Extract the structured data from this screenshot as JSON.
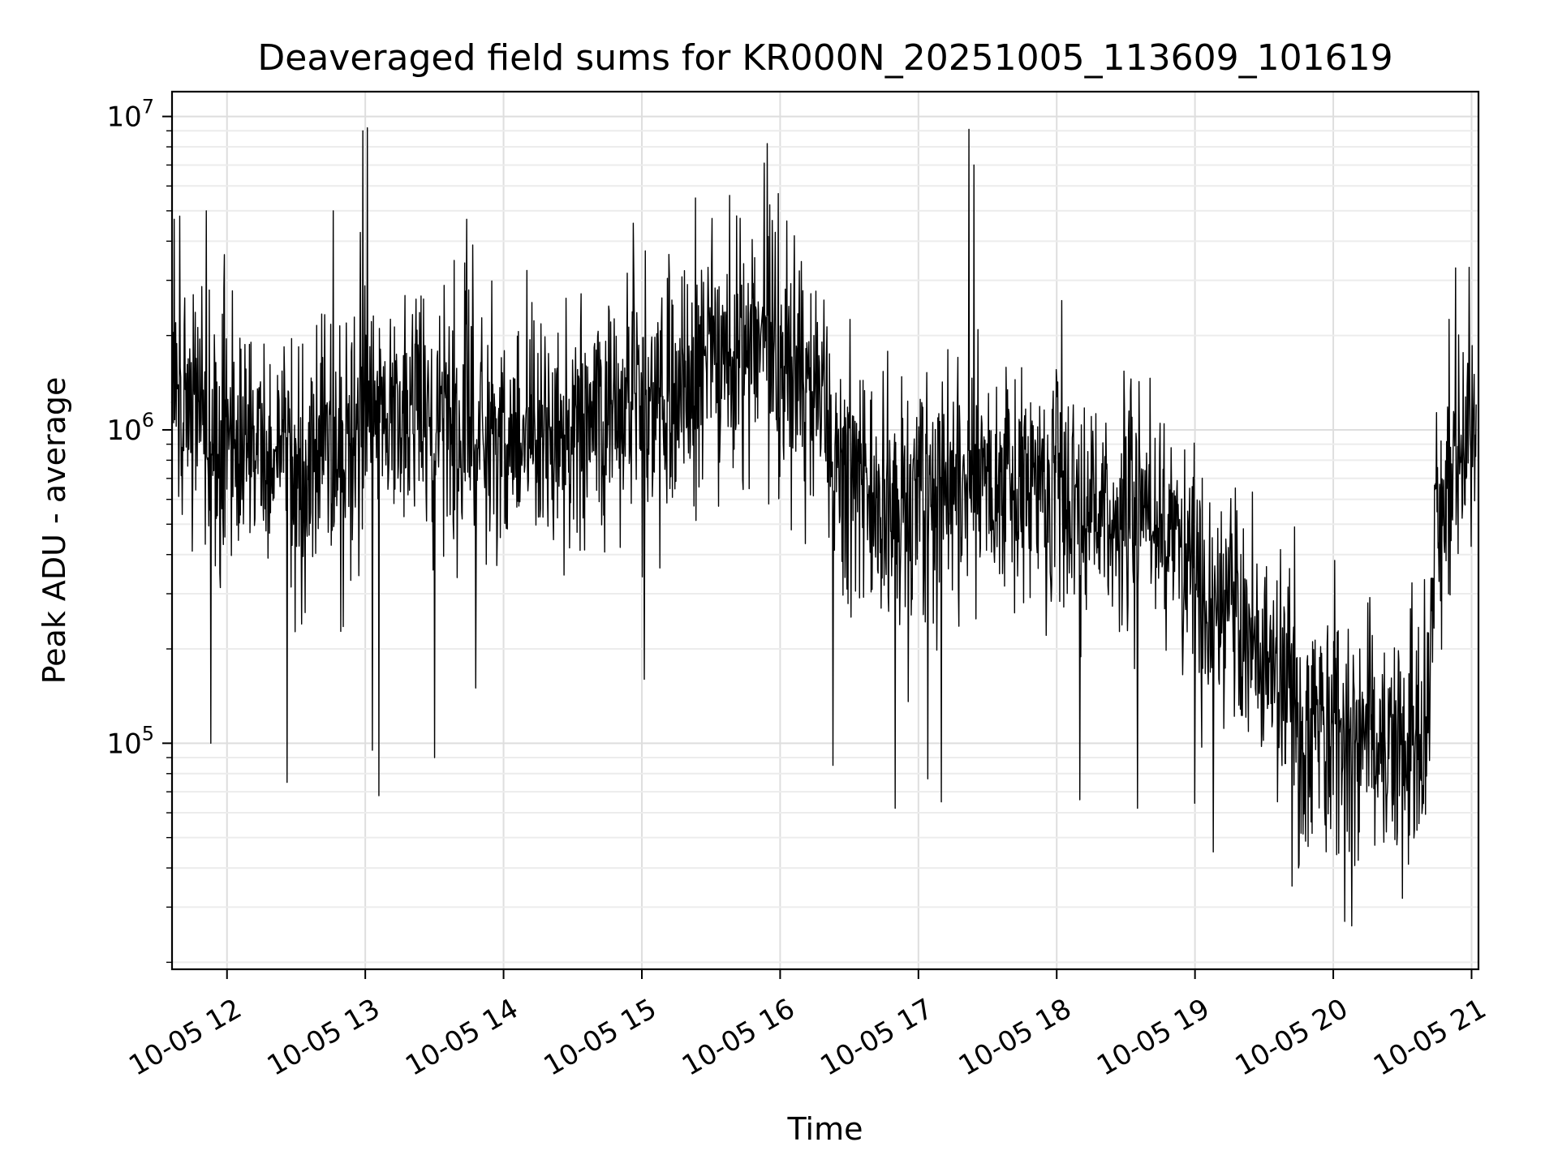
{
  "chart_data": {
    "type": "line",
    "title": "Deaveraged field sums for KR000N_20251005_113609_101619",
    "xlabel": "Time",
    "ylabel": "Peak ADU - average",
    "y_scale": "log",
    "ylim": [
      19000,
      12000000
    ],
    "xlim": [
      "2025-10-05 11:36:09",
      "2025-10-05 21:03:00"
    ],
    "grid": "major and minor",
    "line_color": "#000000",
    "x_ticks": [
      {
        "time": "2025-10-05 12:00",
        "label": "10-05 12"
      },
      {
        "time": "2025-10-05 13:00",
        "label": "10-05 13"
      },
      {
        "time": "2025-10-05 14:00",
        "label": "10-05 14"
      },
      {
        "time": "2025-10-05 15:00",
        "label": "10-05 15"
      },
      {
        "time": "2025-10-05 16:00",
        "label": "10-05 16"
      },
      {
        "time": "2025-10-05 17:00",
        "label": "10-05 17"
      },
      {
        "time": "2025-10-05 18:00",
        "label": "10-05 18"
      },
      {
        "time": "2025-10-05 19:00",
        "label": "10-05 19"
      },
      {
        "time": "2025-10-05 20:00",
        "label": "10-05 20"
      },
      {
        "time": "2025-10-05 21:00",
        "label": "10-05 21"
      }
    ],
    "y_ticks": [
      {
        "value": 100000,
        "base": "10",
        "exp": "5"
      },
      {
        "value": 1000000,
        "base": "10",
        "exp": "6"
      },
      {
        "value": 10000000,
        "base": "10",
        "exp": "7"
      }
    ],
    "series": [
      {
        "points": [
          [
            "2025-10-05 11:36",
            1500000
          ],
          [
            "2025-10-05 11:40",
            1200000
          ],
          [
            "2025-10-05 11:45",
            1300000
          ],
          [
            "2025-10-05 11:50",
            1100000
          ],
          [
            "2025-10-05 11:55",
            1000000
          ],
          [
            "2025-10-05 12:00",
            900000
          ],
          [
            "2025-10-05 12:10",
            800000
          ],
          [
            "2025-10-05 12:20",
            850000
          ],
          [
            "2025-10-05 12:30",
            800000
          ],
          [
            "2025-10-05 12:40",
            900000
          ],
          [
            "2025-10-05 12:50",
            1000000
          ],
          [
            "2025-10-05 13:00",
            1100000
          ],
          [
            "2025-10-05 13:10",
            1000000
          ],
          [
            "2025-10-05 13:20",
            1100000
          ],
          [
            "2025-10-05 13:30",
            1000000
          ],
          [
            "2025-10-05 13:40",
            1200000
          ],
          [
            "2025-10-05 13:50",
            900000
          ],
          [
            "2025-10-05 14:00",
            1000000
          ],
          [
            "2025-10-05 14:15",
            1000000
          ],
          [
            "2025-10-05 14:30",
            900000
          ],
          [
            "2025-10-05 14:45",
            1200000
          ],
          [
            "2025-10-05 15:00",
            1100000
          ],
          [
            "2025-10-05 15:15",
            1400000
          ],
          [
            "2025-10-05 15:30",
            1600000
          ],
          [
            "2025-10-05 15:45",
            1800000
          ],
          [
            "2025-10-05 16:00",
            1800000
          ],
          [
            "2025-10-05 16:15",
            1400000
          ],
          [
            "2025-10-05 16:30",
            700000
          ],
          [
            "2025-10-05 16:45",
            550000
          ],
          [
            "2025-10-05 17:00",
            550000
          ],
          [
            "2025-10-05 17:15",
            650000
          ],
          [
            "2025-10-05 17:30",
            750000
          ],
          [
            "2025-10-05 17:45",
            600000
          ],
          [
            "2025-10-05 18:00",
            650000
          ],
          [
            "2025-10-05 18:15",
            600000
          ],
          [
            "2025-10-05 18:30",
            550000
          ],
          [
            "2025-10-05 18:45",
            500000
          ],
          [
            "2025-10-05 19:00",
            320000
          ],
          [
            "2025-10-05 19:15",
            260000
          ],
          [
            "2025-10-05 19:30",
            200000
          ],
          [
            "2025-10-05 19:45",
            120000
          ],
          [
            "2025-10-05 20:00",
            110000
          ],
          [
            "2025-10-05 20:15",
            100000
          ],
          [
            "2025-10-05 20:30",
            100000
          ],
          [
            "2025-10-05 20:40",
            110000
          ],
          [
            "2025-10-05 20:45",
            450000
          ],
          [
            "2025-10-05 20:55",
            700000
          ],
          [
            "2025-10-05 21:02",
            1200000
          ]
        ],
        "peaks": [
          [
            "2025-10-05 11:37",
            4700000
          ],
          [
            "2025-10-05 11:51",
            5000000
          ],
          [
            "2025-10-05 11:53",
            100000
          ],
          [
            "2025-10-05 12:26",
            75000
          ],
          [
            "2025-10-05 12:46",
            5000000
          ],
          [
            "2025-10-05 12:59",
            9000000
          ],
          [
            "2025-10-05 13:01",
            9200000
          ],
          [
            "2025-10-05 13:03",
            95000
          ],
          [
            "2025-10-05 13:06",
            68000
          ],
          [
            "2025-10-05 13:30",
            90000
          ],
          [
            "2025-10-05 13:44",
            4700000
          ],
          [
            "2025-10-05 13:48",
            150000
          ],
          [
            "2025-10-05 15:01",
            160000
          ],
          [
            "2025-10-05 15:38",
            5600000
          ],
          [
            "2025-10-05 15:53",
            7100000
          ],
          [
            "2025-10-05 16:23",
            85000
          ],
          [
            "2025-10-05 16:50",
            62000
          ],
          [
            "2025-10-05 17:04",
            77000
          ],
          [
            "2025-10-05 17:10",
            65000
          ],
          [
            "2025-10-05 17:22",
            9100000
          ],
          [
            "2025-10-05 17:24",
            7000000
          ],
          [
            "2025-10-05 18:10",
            66000
          ],
          [
            "2025-10-05 18:35",
            62000
          ],
          [
            "2025-10-05 19:08",
            45000
          ],
          [
            "2025-10-05 19:45",
            40000
          ],
          [
            "2025-10-05 20:05",
            27000
          ],
          [
            "2025-10-05 20:30",
            32000
          ],
          [
            "2025-10-05 20:59",
            3300000
          ]
        ]
      }
    ]
  }
}
